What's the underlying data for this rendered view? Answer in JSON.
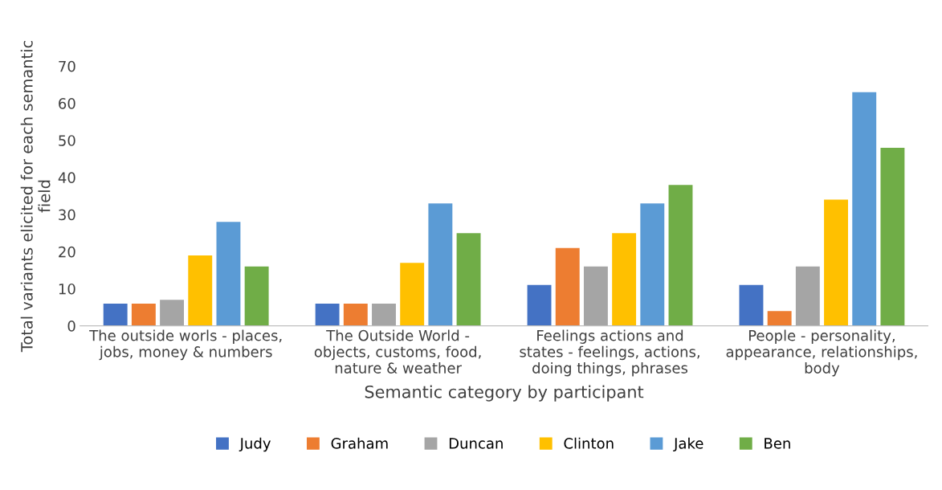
{
  "chart_data": {
    "type": "bar",
    "categories": [
      "The outside worls - places,\njobs, money & numbers",
      "The Outside World -\nobjects, customs, food,\nnature & weather",
      "Feelings actions and\nstates - feelings, actions,\ndoing things, phrases",
      "People - personality,\nappearance, relationships,\nbody"
    ],
    "series": [
      {
        "name": "Judy",
        "color": "#4472c4",
        "values": [
          6,
          6,
          11,
          11
        ]
      },
      {
        "name": "Graham",
        "color": "#ed7d31",
        "values": [
          6,
          6,
          21,
          4
        ]
      },
      {
        "name": "Duncan",
        "color": "#a5a5a5",
        "values": [
          7,
          6,
          16,
          16
        ]
      },
      {
        "name": "Clinton",
        "color": "#ffc000",
        "values": [
          19,
          17,
          25,
          34
        ]
      },
      {
        "name": "Jake",
        "color": "#5b9bd5",
        "values": [
          28,
          33,
          33,
          63
        ]
      },
      {
        "name": "Ben",
        "color": "#70ad47",
        "values": [
          16,
          25,
          38,
          48
        ]
      }
    ],
    "xlabel": "Semantic category by participant",
    "ylabel": "Total variants elicited for each semantic\nfield",
    "ylim": [
      0,
      70
    ],
    "yticks": [
      0,
      10,
      20,
      30,
      40,
      50,
      60,
      70
    ],
    "grid": false,
    "legend": "bottom"
  }
}
